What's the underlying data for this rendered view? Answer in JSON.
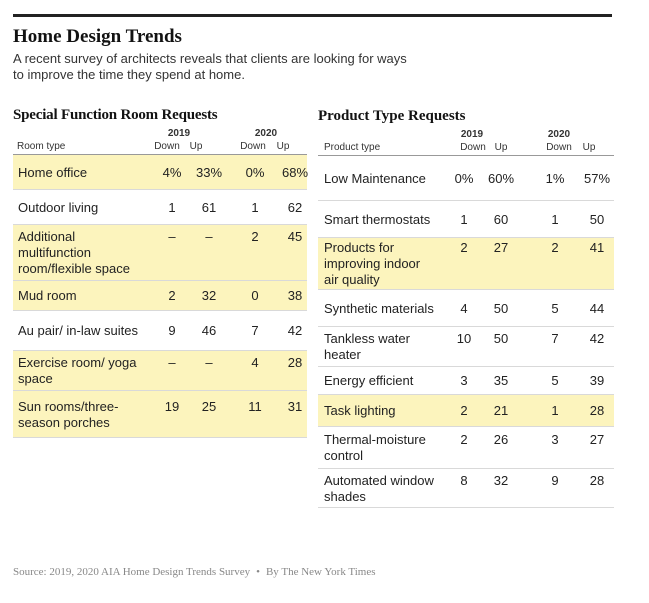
{
  "title": "Home Design Trends",
  "subtitle": "A recent survey of architects reveals that clients are looking for ways to improve the time they spend at home.",
  "highlight_color": "#fcf4bd",
  "chart_data": [
    {
      "type": "table",
      "title": "Special Function Room Requests",
      "row_header": "Room type",
      "years": [
        "2019",
        "2020"
      ],
      "subcolumns": [
        "Down",
        "Up"
      ],
      "rows": [
        {
          "label": "Home office",
          "values": [
            "4%",
            "33%",
            "0%",
            "68%"
          ],
          "highlight": true
        },
        {
          "label": "Outdoor living",
          "values": [
            "1",
            "61",
            "1",
            "62"
          ],
          "highlight": false
        },
        {
          "label": "Additional multifunction room/flexible space",
          "values": [
            "–",
            "–",
            "2",
            "45"
          ],
          "highlight": true
        },
        {
          "label": "Mud room",
          "values": [
            "2",
            "32",
            "0",
            "38"
          ],
          "highlight": true
        },
        {
          "label": "Au pair/ in-law suites",
          "values": [
            "9",
            "46",
            "7",
            "42"
          ],
          "highlight": false
        },
        {
          "label": "Exercise room/ yoga space",
          "values": [
            "–",
            "–",
            "4",
            "28"
          ],
          "highlight": true
        },
        {
          "label": "Sun rooms/three-season porches",
          "values": [
            "19",
            "25",
            "11",
            "31"
          ],
          "highlight": true
        }
      ]
    },
    {
      "type": "table",
      "title": "Product Type Requests",
      "row_header": "Product type",
      "years": [
        "2019",
        "2020"
      ],
      "subcolumns": [
        "Down",
        "Up"
      ],
      "rows": [
        {
          "label": "Low Maintenance",
          "values": [
            "0%",
            "60%",
            "1%",
            "57%"
          ],
          "highlight": false
        },
        {
          "label": "Smart thermostats",
          "values": [
            "1",
            "60",
            "1",
            "50"
          ],
          "highlight": false
        },
        {
          "label": "Products for improving indoor air quality",
          "values": [
            "2",
            "27",
            "2",
            "41"
          ],
          "highlight": true
        },
        {
          "label": "Synthetic materials",
          "values": [
            "4",
            "50",
            "5",
            "44"
          ],
          "highlight": false
        },
        {
          "label": "Tankless water heater",
          "values": [
            "10",
            "50",
            "7",
            "42"
          ],
          "highlight": false
        },
        {
          "label": "Energy efficient",
          "values": [
            "3",
            "35",
            "5",
            "39"
          ],
          "highlight": false
        },
        {
          "label": "Task lighting",
          "values": [
            "2",
            "21",
            "1",
            "28"
          ],
          "highlight": true
        },
        {
          "label": "Thermal-moisture control",
          "values": [
            "2",
            "26",
            "3",
            "27"
          ],
          "highlight": false
        },
        {
          "label": "Automated window shades",
          "values": [
            "8",
            "32",
            "9",
            "28"
          ],
          "highlight": false
        }
      ]
    }
  ],
  "footer": {
    "source": "Source: 2019, 2020 AIA Home Design Trends Survey",
    "separator": "•",
    "credit": "By The New York Times"
  }
}
